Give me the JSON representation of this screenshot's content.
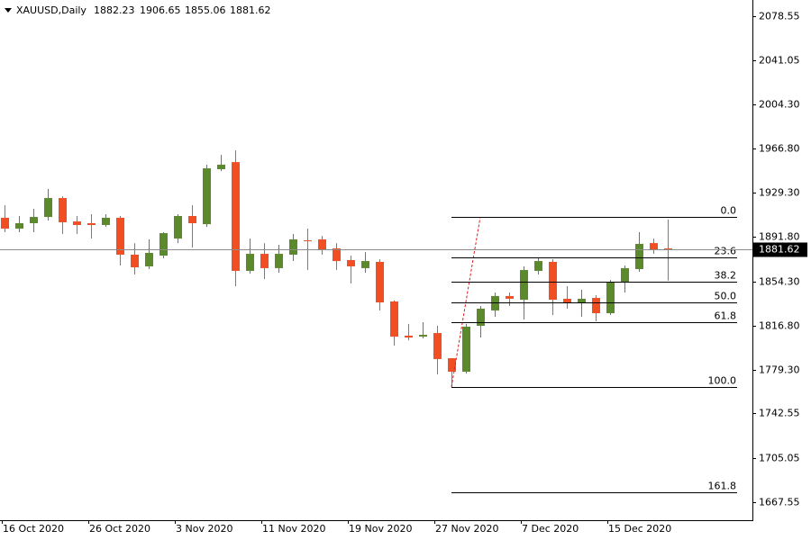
{
  "chart_data": {
    "type": "candlestick",
    "title": "XAUUSD,Daily",
    "categories": [
      "16 Oct 2020",
      null,
      null,
      null,
      null,
      null,
      "26 Oct 2020",
      null,
      null,
      null,
      null,
      null,
      "3 Nov 2020",
      null,
      null,
      null,
      null,
      null,
      "11 Nov 2020",
      null,
      null,
      null,
      null,
      null,
      "19 Nov 2020",
      null,
      null,
      null,
      null,
      null,
      "27 Nov 2020",
      null,
      null,
      null,
      null,
      null,
      "7 Dec 2020",
      null,
      null,
      null,
      null,
      null,
      "15 Dec 2020",
      null,
      null,
      null,
      null
    ],
    "open": [
      1908.1,
      1898.9,
      1903.5,
      1908.8,
      1924.8,
      1905.0,
      1903.5,
      1902.0,
      1908.1,
      1876.9,
      1867.0,
      1876.1,
      1890.5,
      1909.6,
      1902.7,
      1949.2,
      1955.2,
      1863.2,
      1877.6,
      1865.5,
      1876.9,
      1889.0,
      1889.8,
      1882.2,
      1872.3,
      1865.5,
      1870.8,
      1837.3,
      1808.4,
      1807.6,
      1810.6,
      1789.3,
      1777.9,
      1816.7,
      1829.7,
      1841.9,
      1838.8,
      1863.2,
      1870.8,
      1839.6,
      1836.5,
      1840.3,
      1827.4,
      1853.3,
      1864.7,
      1886.7,
      1882.23
    ],
    "high": [
      1918.7,
      1909.6,
      1915.7,
      1932.4,
      1926.3,
      1909.6,
      1911.1,
      1911.1,
      1909.6,
      1886.7,
      1889.8,
      1895.9,
      1911.1,
      1918.7,
      1953.0,
      1961.3,
      1965.1,
      1890.5,
      1886.7,
      1885.2,
      1894.4,
      1898.9,
      1892.8,
      1886.7,
      1876.1,
      1879.1,
      1873.0,
      1838.1,
      1818.3,
      1819.8,
      1816.7,
      1789.3,
      1818.3,
      1833.5,
      1844.9,
      1844.9,
      1867.0,
      1874.6,
      1873.0,
      1850.2,
      1847.2,
      1842.6,
      1855.6,
      1867.7,
      1895.9,
      1890.5,
      1906.65
    ],
    "low": [
      1895.9,
      1895.9,
      1895.9,
      1905.8,
      1894.4,
      1894.4,
      1890.5,
      1900.4,
      1867.7,
      1860.1,
      1864.7,
      1873.8,
      1886.7,
      1882.9,
      1900.4,
      1947.6,
      1850.2,
      1860.9,
      1856.3,
      1861.6,
      1871.5,
      1863.9,
      1876.9,
      1863.9,
      1852.5,
      1861.6,
      1829.7,
      1800.0,
      1804.5,
      1806.1,
      1775.6,
      1765.0,
      1776.4,
      1806.8,
      1824.3,
      1833.5,
      1822.1,
      1860.1,
      1825.9,
      1831.2,
      1824.3,
      1820.5,
      1825.9,
      1844.9,
      1862.4,
      1877.6,
      1855.06
    ],
    "close": [
      1898.9,
      1903.5,
      1908.8,
      1924.8,
      1904.3,
      1902.0,
      1902.0,
      1908.1,
      1876.9,
      1866.2,
      1878.4,
      1895.1,
      1909.6,
      1903.5,
      1949.9,
      1953.0,
      1863.2,
      1877.6,
      1865.5,
      1877.6,
      1889.8,
      1888.3,
      1880.7,
      1871.5,
      1867.0,
      1871.5,
      1836.5,
      1807.6,
      1806.8,
      1809.1,
      1788.6,
      1777.9,
      1816.0,
      1831.2,
      1841.9,
      1839.6,
      1863.9,
      1871.5,
      1838.8,
      1836.5,
      1839.6,
      1827.4,
      1854.0,
      1865.5,
      1886.0,
      1880.7,
      1881.62
    ],
    "up_color": "#5b8a2c",
    "down_color": "#f04e23",
    "ylim": [
      1652.3,
      2092.3
    ],
    "yticks": [
      2078.55,
      2041.05,
      {
        "value": 2004.3,
        "label": "2004.30"
      },
      {
        "value": 1966.8,
        "label": "1966.80"
      },
      {
        "value": 1929.3,
        "label": "1929.30"
      },
      {
        "value": 1891.8,
        "label": "1891.80"
      },
      {
        "value": 1854.3,
        "label": "1854.30"
      },
      {
        "value": 1816.8,
        "label": "1816.80"
      },
      {
        "value": 1779.3,
        "label": "1779.30"
      },
      1742.55,
      1705.05,
      1667.55
    ],
    "fibonacci": [
      {
        "label": "0.0",
        "value": 1908.8
      },
      {
        "label": "23.6",
        "value": 1874.9
      },
      {
        "label": "38.2",
        "value": 1853.9
      },
      {
        "label": "50.0",
        "value": 1836.9
      },
      {
        "label": "61.8",
        "value": 1820.0
      },
      {
        "label": "100.0",
        "value": 1765.0
      },
      {
        "label": "161.8",
        "value": 1676.1
      }
    ]
  }
}
